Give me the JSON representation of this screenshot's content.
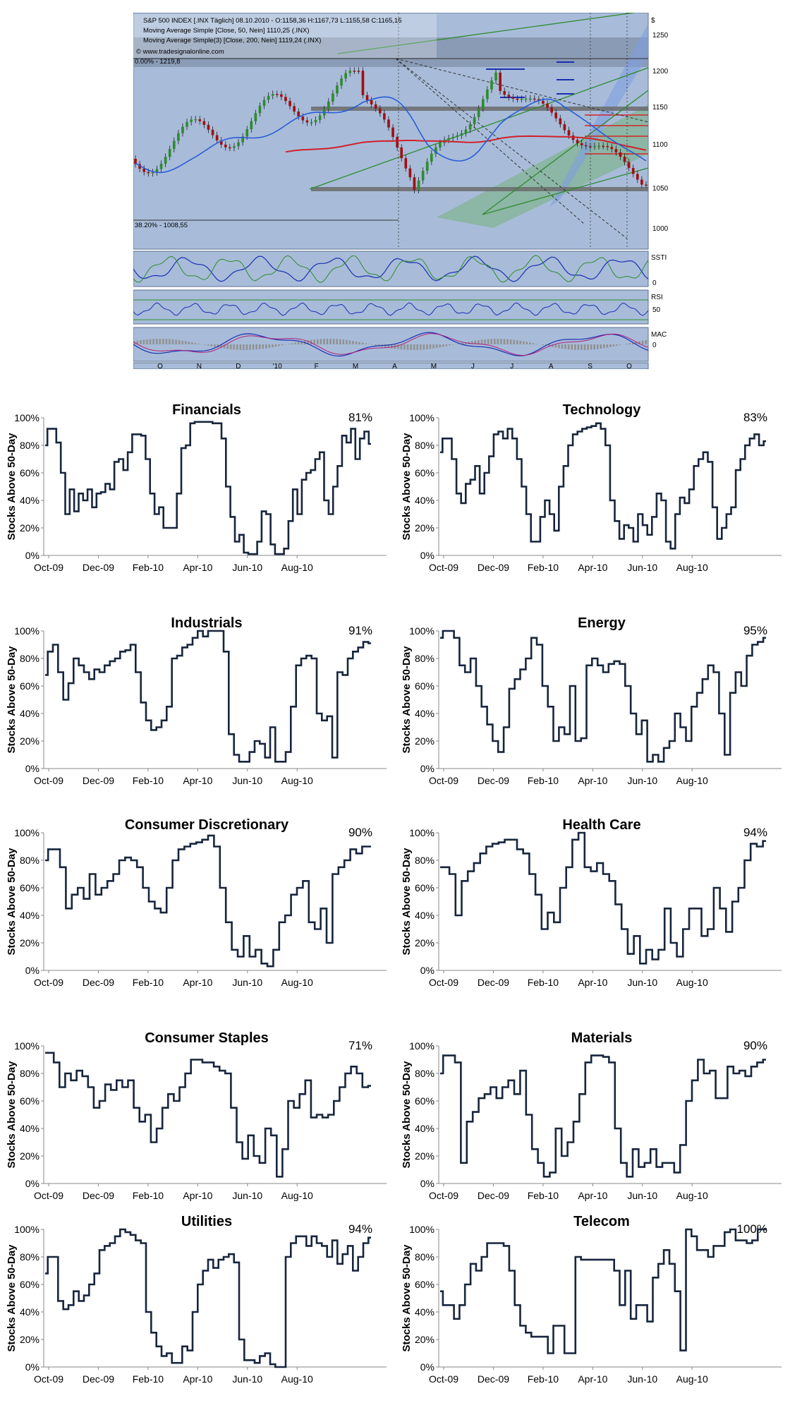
{
  "sp500_panel": {
    "header_line": "S&P 500 INDEX [.INX  Täglich] 08.10.2010 - O:1158,36 H:1167,73 L:1155,58 C:1165,15",
    "ma50_legend": "Moving Average Simple [Close, 50, Nein] 1110,25 (.INX)",
    "ma200_legend": "Moving Average Simple(3) [Close, 200, Nein] 1119,24 (.INX)",
    "watermark": "© www.tradesignalonline.com",
    "fib_top_label": "0.00% - 1219,8",
    "fib_bottom_label": "38.20% - 1008,55",
    "price_axis_unit": "$",
    "price_ticks": [
      "1250",
      "1200",
      "1150",
      "1100",
      "1050",
      "1000"
    ],
    "sst_label": "SSTI",
    "sst_ticks": [
      "0"
    ],
    "rsi_label": "RSI",
    "rsi_ticks": [
      "50"
    ],
    "macd_label": "MAC",
    "macd_ticks": [
      "0"
    ],
    "month_labels": [
      "O",
      "N",
      "D",
      "'10",
      "F",
      "M",
      "A",
      "M",
      "J",
      "J",
      "A",
      "S",
      "O"
    ],
    "colors": {
      "panel_bg": "#a8bcd9",
      "ma50": "#2a5cd6",
      "ma200": "#d0202a",
      "channel": "#2e8b2e",
      "sr_band": "#6b6b6b",
      "bull_candle": "#2e8b2e",
      "bear_candle": "#a01010"
    }
  },
  "chart_data": [
    {
      "type": "line",
      "title": "Financials",
      "annotation": "81%",
      "ylabel": "Stocks Above 50-Day",
      "xlabel": "",
      "x_ticks": [
        "Oct-09",
        "Dec-09",
        "Feb-10",
        "Apr-10",
        "Jun-10",
        "Aug-10"
      ],
      "y_ticks": [
        "0%",
        "20%",
        "40%",
        "60%",
        "80%",
        "100%"
      ],
      "ylim": [
        0,
        100
      ],
      "values": [
        80,
        92,
        92,
        82,
        60,
        30,
        48,
        32,
        45,
        40,
        48,
        35,
        45,
        46,
        52,
        48,
        68,
        70,
        62,
        75,
        88,
        88,
        87,
        70,
        45,
        30,
        35,
        20,
        20,
        20,
        45,
        78,
        80,
        96,
        97,
        97,
        97,
        97,
        96,
        96,
        85,
        50,
        28,
        10,
        15,
        2,
        1,
        1,
        10,
        32,
        30,
        8,
        1,
        1,
        5,
        25,
        48,
        30,
        55,
        60,
        62,
        70,
        75,
        40,
        30,
        50,
        65,
        87,
        82,
        92,
        70,
        85,
        90,
        81
      ]
    },
    {
      "type": "line",
      "title": "Technology",
      "annotation": "83%",
      "ylabel": "Stocks Above 50-Day",
      "xlabel": "",
      "x_ticks": [
        "Oct-09",
        "Dec-09",
        "Feb-10",
        "Apr-10",
        "Jun-10",
        "Aug-10"
      ],
      "y_ticks": [
        "0%",
        "20%",
        "40%",
        "60%",
        "80%",
        "100%"
      ],
      "ylim": [
        0,
        100
      ],
      "values": [
        75,
        85,
        85,
        70,
        45,
        38,
        52,
        55,
        65,
        45,
        60,
        72,
        88,
        90,
        85,
        92,
        85,
        70,
        50,
        30,
        10,
        10,
        28,
        40,
        30,
        18,
        50,
        65,
        80,
        88,
        90,
        92,
        93,
        94,
        96,
        92,
        80,
        40,
        25,
        12,
        22,
        20,
        10,
        30,
        22,
        15,
        28,
        45,
        40,
        10,
        5,
        30,
        42,
        38,
        48,
        65,
        70,
        75,
        68,
        35,
        12,
        20,
        30,
        35,
        62,
        70,
        80,
        85,
        88,
        80,
        83
      ]
    },
    {
      "type": "line",
      "title": "Industrials",
      "annotation": "91%",
      "ylabel": "Stocks Above 50-Day",
      "xlabel": "",
      "x_ticks": [
        "Oct-09",
        "Dec-09",
        "Feb-10",
        "Apr-10",
        "Jun-10",
        "Aug-10"
      ],
      "y_ticks": [
        "0%",
        "20%",
        "40%",
        "60%",
        "80%",
        "100%"
      ],
      "ylim": [
        0,
        100
      ],
      "values": [
        68,
        85,
        90,
        70,
        50,
        62,
        80,
        75,
        70,
        65,
        72,
        70,
        75,
        78,
        80,
        85,
        86,
        90,
        70,
        48,
        35,
        28,
        30,
        35,
        45,
        80,
        82,
        88,
        90,
        95,
        100,
        96,
        100,
        100,
        100,
        85,
        25,
        10,
        5,
        5,
        12,
        20,
        18,
        8,
        30,
        5,
        5,
        12,
        45,
        75,
        80,
        82,
        80,
        40,
        35,
        38,
        8,
        70,
        68,
        80,
        85,
        88,
        92,
        91
      ]
    },
    {
      "type": "line",
      "title": "Energy",
      "annotation": "95%",
      "ylabel": "Stocks Above 50-Day",
      "xlabel": "",
      "x_ticks": [
        "Oct-09",
        "Dec-09",
        "Feb-10",
        "Apr-10",
        "Jun-10",
        "Aug-10"
      ],
      "y_ticks": [
        "0%",
        "20%",
        "40%",
        "60%",
        "80%",
        "100%"
      ],
      "ylim": [
        0,
        100
      ],
      "values": [
        95,
        100,
        100,
        95,
        75,
        70,
        80,
        60,
        45,
        32,
        20,
        12,
        30,
        58,
        65,
        72,
        80,
        95,
        90,
        60,
        45,
        20,
        30,
        25,
        60,
        20,
        22,
        75,
        80,
        75,
        70,
        76,
        78,
        76,
        60,
        40,
        25,
        35,
        5,
        10,
        5,
        15,
        20,
        40,
        30,
        20,
        45,
        55,
        65,
        75,
        70,
        40,
        10,
        55,
        70,
        60,
        82,
        90,
        92,
        95
      ]
    },
    {
      "type": "line",
      "title": "Consumer Discretionary",
      "annotation": "90%",
      "ylabel": "Stocks Above 50-Day",
      "xlabel": "",
      "x_ticks": [
        "Oct-09",
        "Dec-09",
        "Feb-10",
        "Apr-10",
        "Jun-10",
        "Aug-10"
      ],
      "y_ticks": [
        "0%",
        "20%",
        "40%",
        "60%",
        "80%",
        "100%"
      ],
      "ylim": [
        0,
        100
      ],
      "values": [
        80,
        88,
        88,
        75,
        45,
        55,
        60,
        52,
        70,
        55,
        60,
        65,
        70,
        80,
        82,
        80,
        75,
        60,
        50,
        45,
        42,
        60,
        80,
        88,
        90,
        92,
        93,
        95,
        98,
        90,
        60,
        35,
        15,
        10,
        25,
        10,
        15,
        5,
        3,
        15,
        35,
        40,
        55,
        60,
        65,
        35,
        30,
        45,
        20,
        70,
        75,
        80,
        88,
        85,
        90,
        90
      ]
    },
    {
      "type": "line",
      "title": "Health Care",
      "annotation": "94%",
      "ylabel": "Stocks Above 50-Day",
      "xlabel": "",
      "x_ticks": [
        "Oct-09",
        "Dec-09",
        "Feb-10",
        "Apr-10",
        "Jun-10",
        "Aug-10"
      ],
      "y_ticks": [
        "0%",
        "20%",
        "40%",
        "60%",
        "80%",
        "100%"
      ],
      "ylim": [
        0,
        100
      ],
      "values": [
        75,
        75,
        70,
        40,
        65,
        72,
        78,
        85,
        90,
        92,
        93,
        95,
        95,
        88,
        85,
        70,
        55,
        30,
        42,
        35,
        60,
        75,
        95,
        100,
        75,
        72,
        78,
        70,
        65,
        48,
        30,
        12,
        25,
        5,
        15,
        8,
        15,
        45,
        20,
        10,
        30,
        45,
        45,
        25,
        30,
        60,
        45,
        28,
        50,
        60,
        80,
        92,
        90,
        94
      ]
    },
    {
      "type": "line",
      "title": "Consumer Staples",
      "annotation": "71%",
      "ylabel": "Stocks Above 50-Day",
      "xlabel": "",
      "x_ticks": [
        "Oct-09",
        "Dec-09",
        "Feb-10",
        "Apr-10",
        "Jun-10",
        "Aug-10"
      ],
      "y_ticks": [
        "0%",
        "20%",
        "40%",
        "60%",
        "80%",
        "100%"
      ],
      "ylim": [
        0,
        100
      ],
      "values": [
        95,
        95,
        88,
        70,
        80,
        75,
        82,
        78,
        70,
        55,
        60,
        72,
        68,
        75,
        70,
        75,
        55,
        45,
        50,
        30,
        40,
        55,
        65,
        60,
        70,
        80,
        90,
        90,
        88,
        88,
        85,
        82,
        80,
        55,
        30,
        18,
        35,
        20,
        15,
        40,
        35,
        5,
        25,
        60,
        55,
        65,
        75,
        48,
        50,
        48,
        50,
        60,
        70,
        80,
        85,
        80,
        70,
        71
      ]
    },
    {
      "type": "line",
      "title": "Materials",
      "annotation": "90%",
      "ylabel": "Stocks Above 50-Day",
      "xlabel": "",
      "x_ticks": [
        "Oct-09",
        "Dec-09",
        "Feb-10",
        "Apr-10",
        "Jun-10",
        "Aug-10"
      ],
      "y_ticks": [
        "0%",
        "20%",
        "40%",
        "60%",
        "80%",
        "100%"
      ],
      "ylim": [
        0,
        100
      ],
      "values": [
        80,
        93,
        93,
        88,
        15,
        45,
        52,
        62,
        65,
        70,
        62,
        70,
        75,
        65,
        82,
        50,
        25,
        15,
        5,
        8,
        40,
        20,
        30,
        45,
        65,
        88,
        93,
        93,
        92,
        88,
        40,
        15,
        5,
        25,
        12,
        15,
        25,
        12,
        15,
        15,
        8,
        28,
        60,
        75,
        90,
        80,
        82,
        62,
        62,
        85,
        80,
        82,
        78,
        85,
        88,
        90
      ]
    },
    {
      "type": "line",
      "title": "Utilities",
      "annotation": "94%",
      "ylabel": "Stocks Above 50-Day",
      "xlabel": "",
      "x_ticks": [
        "Oct-09",
        "Dec-09",
        "Feb-10",
        "Apr-10",
        "Jun-10",
        "Aug-10"
      ],
      "y_ticks": [
        "0%",
        "20%",
        "40%",
        "60%",
        "80%",
        "100%"
      ],
      "ylim": [
        0,
        100
      ],
      "values": [
        68,
        80,
        80,
        48,
        42,
        45,
        55,
        48,
        52,
        60,
        68,
        85,
        88,
        90,
        95,
        100,
        98,
        96,
        92,
        90,
        40,
        25,
        15,
        8,
        10,
        3,
        3,
        15,
        12,
        40,
        60,
        70,
        78,
        72,
        78,
        80,
        82,
        76,
        20,
        5,
        5,
        3,
        8,
        10,
        2,
        0,
        0,
        80,
        90,
        95,
        95,
        88,
        95,
        90,
        88,
        80,
        92,
        75,
        82,
        88,
        70,
        80,
        90,
        94
      ]
    },
    {
      "type": "line",
      "title": "Telecom",
      "annotation": "100%",
      "ylabel": "Stocks Above 50-Day",
      "xlabel": "",
      "x_ticks": [
        "Oct-09",
        "Dec-09",
        "Feb-10",
        "Apr-10",
        "Jun-10",
        "Aug-10"
      ],
      "y_ticks": [
        "0%",
        "20%",
        "40%",
        "60%",
        "80%",
        "100%"
      ],
      "ylim": [
        0,
        100
      ],
      "values": [
        55,
        45,
        45,
        35,
        45,
        60,
        75,
        70,
        80,
        90,
        90,
        90,
        88,
        70,
        45,
        30,
        25,
        22,
        22,
        22,
        10,
        30,
        30,
        10,
        10,
        80,
        78,
        78,
        78,
        78,
        78,
        78,
        70,
        45,
        70,
        35,
        45,
        45,
        33,
        65,
        75,
        85,
        75,
        55,
        12,
        100,
        95,
        85,
        85,
        80,
        88,
        88,
        98,
        100,
        92,
        92,
        90,
        92,
        100,
        100
      ]
    }
  ]
}
